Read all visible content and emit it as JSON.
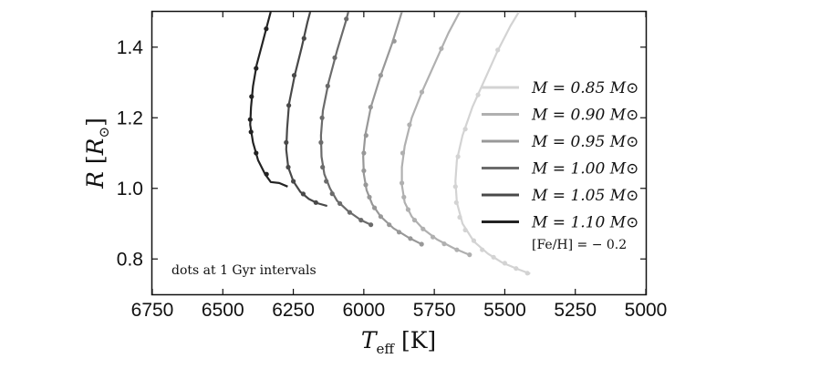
{
  "chart_data": {
    "type": "line",
    "xlabel": "T_eff [K]",
    "ylabel": "R [R_⊙]",
    "xlim": [
      6750,
      5000
    ],
    "ylim": [
      0.7,
      1.5
    ],
    "x_inverted": true,
    "xticks": [
      "6750",
      "6500",
      "6250",
      "6000",
      "5750",
      "5500",
      "5250",
      "5000"
    ],
    "yticks": [
      "0.8",
      "1.0",
      "1.2",
      "1.4"
    ],
    "legend_position": "right",
    "annotation": "dots at 1 Gyr intervals",
    "metallicity_label": "[Fe/H] = − 0.2",
    "series": [
      {
        "name": "M = 0.85 M⊙",
        "color": "#d3d3d3",
        "points": [
          [
            5410,
            0.758
          ],
          [
            5450,
            0.77
          ],
          [
            5510,
            0.79
          ],
          [
            5560,
            0.815
          ],
          [
            5610,
            0.85
          ],
          [
            5650,
            0.9
          ],
          [
            5670,
            0.96
          ],
          [
            5675,
            1.02
          ],
          [
            5670,
            1.08
          ],
          [
            5650,
            1.15
          ],
          [
            5615,
            1.23
          ],
          [
            5570,
            1.31
          ],
          [
            5525,
            1.39
          ],
          [
            5480,
            1.46
          ],
          [
            5450,
            1.5
          ]
        ],
        "dots": [
          [
            5420,
            0.76
          ],
          [
            5460,
            0.773
          ],
          [
            5500,
            0.788
          ],
          [
            5540,
            0.805
          ],
          [
            5580,
            0.826
          ],
          [
            5610,
            0.852
          ],
          [
            5640,
            0.882
          ],
          [
            5660,
            0.918
          ],
          [
            5672,
            0.96
          ],
          [
            5675,
            1.005
          ],
          [
            5666,
            1.09
          ],
          [
            5640,
            1.168
          ],
          [
            5595,
            1.265
          ],
          [
            5525,
            1.392
          ]
        ]
      },
      {
        "name": "M = 0.90 M⊙",
        "color": "#b0b0b0",
        "points": [
          [
            5620,
            0.81
          ],
          [
            5680,
            0.83
          ],
          [
            5740,
            0.855
          ],
          [
            5790,
            0.885
          ],
          [
            5830,
            0.92
          ],
          [
            5855,
            0.96
          ],
          [
            5865,
            1.01
          ],
          [
            5865,
            1.06
          ],
          [
            5855,
            1.12
          ],
          [
            5830,
            1.2
          ],
          [
            5790,
            1.28
          ],
          [
            5745,
            1.36
          ],
          [
            5700,
            1.44
          ],
          [
            5660,
            1.5
          ]
        ],
        "dots": [
          [
            5625,
            0.812
          ],
          [
            5670,
            0.826
          ],
          [
            5715,
            0.843
          ],
          [
            5755,
            0.862
          ],
          [
            5790,
            0.885
          ],
          [
            5820,
            0.91
          ],
          [
            5843,
            0.94
          ],
          [
            5858,
            0.975
          ],
          [
            5865,
            1.015
          ],
          [
            5862,
            1.1
          ],
          [
            5838,
            1.18
          ],
          [
            5794,
            1.273
          ],
          [
            5725,
            1.396
          ]
        ]
      },
      {
        "name": "M = 0.95 M⊙",
        "color": "#989898",
        "points": [
          [
            5790,
            0.84
          ],
          [
            5840,
            0.86
          ],
          [
            5895,
            0.887
          ],
          [
            5940,
            0.92
          ],
          [
            5970,
            0.955
          ],
          [
            5990,
            0.995
          ],
          [
            6000,
            1.04
          ],
          [
            6002,
            1.09
          ],
          [
            5995,
            1.15
          ],
          [
            5975,
            1.23
          ],
          [
            5940,
            1.32
          ],
          [
            5900,
            1.41
          ],
          [
            5865,
            1.5
          ]
        ],
        "dots": [
          [
            5795,
            0.842
          ],
          [
            5835,
            0.858
          ],
          [
            5875,
            0.876
          ],
          [
            5910,
            0.897
          ],
          [
            5940,
            0.92
          ],
          [
            5962,
            0.945
          ],
          [
            5980,
            0.975
          ],
          [
            5993,
            1.01
          ],
          [
            6000,
            1.05
          ],
          [
            6000,
            1.1
          ],
          [
            5992,
            1.15
          ],
          [
            5976,
            1.23
          ],
          [
            5940,
            1.32
          ],
          [
            5892,
            1.417
          ]
        ]
      },
      {
        "name": "M = 1.00 M⊙",
        "color": "#6b6b6b",
        "points": [
          [
            5970,
            0.895
          ],
          [
            6010,
            0.91
          ],
          [
            6055,
            0.935
          ],
          [
            6095,
            0.965
          ],
          [
            6120,
            1.0
          ],
          [
            6140,
            1.04
          ],
          [
            6150,
            1.09
          ],
          [
            6152,
            1.15
          ],
          [
            6145,
            1.22
          ],
          [
            6125,
            1.3
          ],
          [
            6095,
            1.39
          ],
          [
            6065,
            1.47
          ],
          [
            6055,
            1.5
          ]
        ],
        "dots": [
          [
            5975,
            0.897
          ],
          [
            6010,
            0.91
          ],
          [
            6050,
            0.932
          ],
          [
            6085,
            0.957
          ],
          [
            6112,
            0.985
          ],
          [
            6133,
            1.02
          ],
          [
            6146,
            1.06
          ],
          [
            6152,
            1.13
          ],
          [
            6148,
            1.2
          ],
          [
            6128,
            1.29
          ],
          [
            6103,
            1.37
          ],
          [
            6062,
            1.48
          ]
        ]
      },
      {
        "name": "M = 1.05 M⊙",
        "color": "#494949",
        "points": [
          [
            6130,
            0.95
          ],
          [
            6165,
            0.958
          ],
          [
            6195,
            0.97
          ],
          [
            6225,
            0.99
          ],
          [
            6250,
            1.02
          ],
          [
            6268,
            1.06
          ],
          [
            6275,
            1.11
          ],
          [
            6272,
            1.17
          ],
          [
            6265,
            1.24
          ],
          [
            6245,
            1.32
          ],
          [
            6220,
            1.4
          ],
          [
            6200,
            1.47
          ],
          [
            6190,
            1.5
          ]
        ],
        "dots": [
          [
            6170,
            0.96
          ],
          [
            6215,
            0.984
          ],
          [
            6250,
            1.02
          ],
          [
            6268,
            1.06
          ],
          [
            6275,
            1.13
          ],
          [
            6266,
            1.235
          ],
          [
            6247,
            1.32
          ],
          [
            6212,
            1.425
          ]
        ]
      },
      {
        "name": "M = 1.10 M⊙",
        "color": "#232323",
        "points": [
          [
            6270,
            1.005
          ],
          [
            6300,
            1.015
          ],
          [
            6330,
            1.018
          ],
          [
            6350,
            1.04
          ],
          [
            6375,
            1.08
          ],
          [
            6393,
            1.13
          ],
          [
            6403,
            1.18
          ],
          [
            6400,
            1.23
          ],
          [
            6393,
            1.29
          ],
          [
            6380,
            1.35
          ],
          [
            6360,
            1.41
          ],
          [
            6340,
            1.47
          ],
          [
            6330,
            1.5
          ]
        ],
        "dots": [
          [
            6345,
            1.04
          ],
          [
            6382,
            1.1
          ],
          [
            6400,
            1.16
          ],
          [
            6403,
            1.195
          ],
          [
            6398,
            1.26
          ],
          [
            6382,
            1.34
          ],
          [
            6346,
            1.452
          ]
        ]
      }
    ]
  }
}
